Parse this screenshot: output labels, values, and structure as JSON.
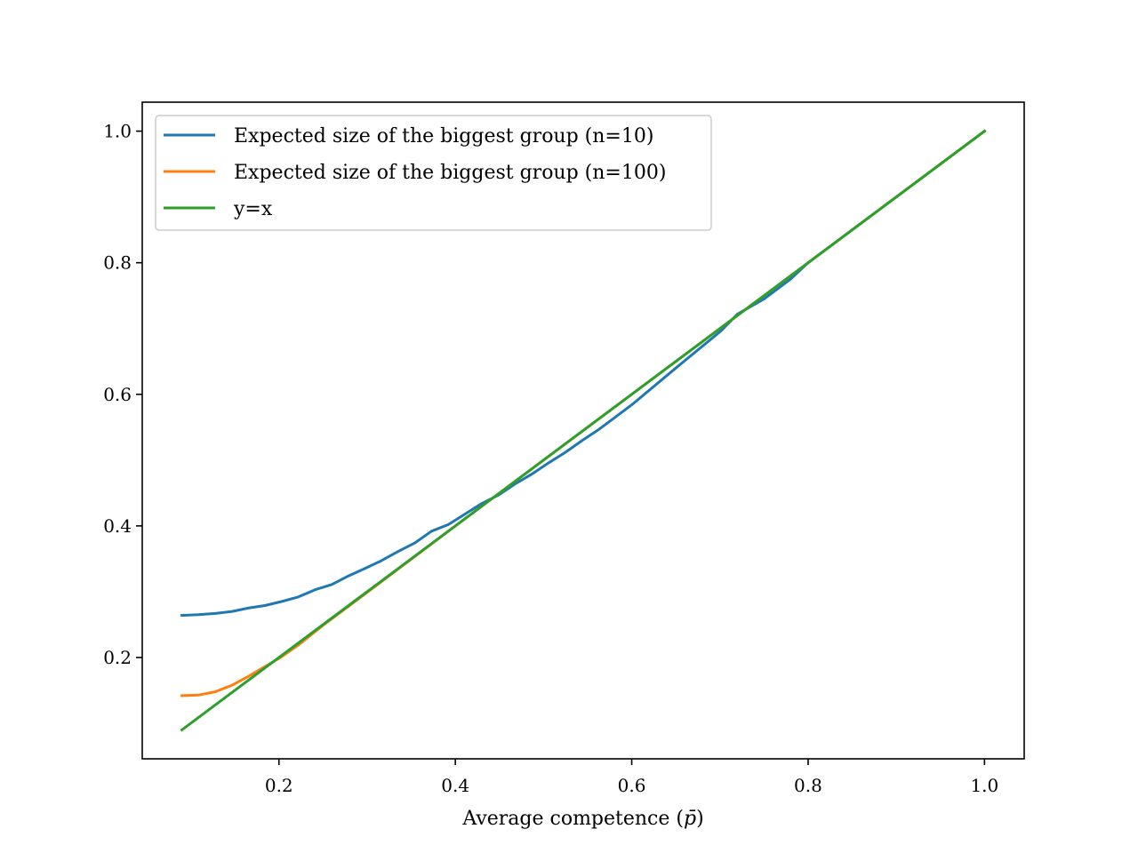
{
  "chart_data": {
    "type": "line",
    "title": "",
    "xlabel": "Average competence (",
    "xlabel_symbol": "p̄",
    "xlabel_suffix": ")",
    "ylabel": "",
    "xlim": [
      0.045,
      1.045
    ],
    "ylim": [
      0.046,
      1.044
    ],
    "xticks": [
      "0.2",
      "0.4",
      "0.6",
      "0.8",
      "1.0"
    ],
    "yticks": [
      "0.2",
      "0.4",
      "0.6",
      "0.8",
      "1.0"
    ],
    "grid": false,
    "legend_position": "top-left",
    "series": [
      {
        "name": "Expected size of the biggest group (n=10)",
        "color": "#1f77b4",
        "x": [
          0.09,
          0.109,
          0.128,
          0.147,
          0.165,
          0.184,
          0.203,
          0.222,
          0.241,
          0.26,
          0.279,
          0.297,
          0.316,
          0.335,
          0.354,
          0.373,
          0.392,
          0.411,
          0.43,
          0.449,
          0.468,
          0.487,
          0.506,
          0.525,
          0.544,
          0.562,
          0.6,
          0.65,
          0.7,
          0.72,
          0.75,
          0.78,
          0.8,
          0.9,
          1.0
        ],
        "y": [
          0.264,
          0.265,
          0.267,
          0.27,
          0.275,
          0.279,
          0.285,
          0.292,
          0.303,
          0.311,
          0.324,
          0.335,
          0.347,
          0.361,
          0.374,
          0.392,
          0.402,
          0.418,
          0.434,
          0.447,
          0.464,
          0.479,
          0.496,
          0.512,
          0.53,
          0.546,
          0.584,
          0.64,
          0.695,
          0.722,
          0.745,
          0.775,
          0.8,
          0.9,
          1.0
        ]
      },
      {
        "name": "Expected size of the biggest group (n=100)",
        "color": "#ff7f0e",
        "x": [
          0.09,
          0.109,
          0.128,
          0.147,
          0.165,
          0.184,
          0.203,
          0.222,
          0.25,
          0.3,
          0.4,
          0.5,
          0.6,
          0.7,
          0.8,
          0.9,
          1.0
        ],
        "y": [
          0.142,
          0.143,
          0.148,
          0.158,
          0.171,
          0.186,
          0.201,
          0.219,
          0.249,
          0.299,
          0.4,
          0.5,
          0.6,
          0.7,
          0.8,
          0.9,
          1.0
        ]
      },
      {
        "name": "y=x",
        "color": "#2ca02c",
        "x": [
          0.09,
          1.0
        ],
        "y": [
          0.09,
          1.0
        ]
      }
    ]
  }
}
